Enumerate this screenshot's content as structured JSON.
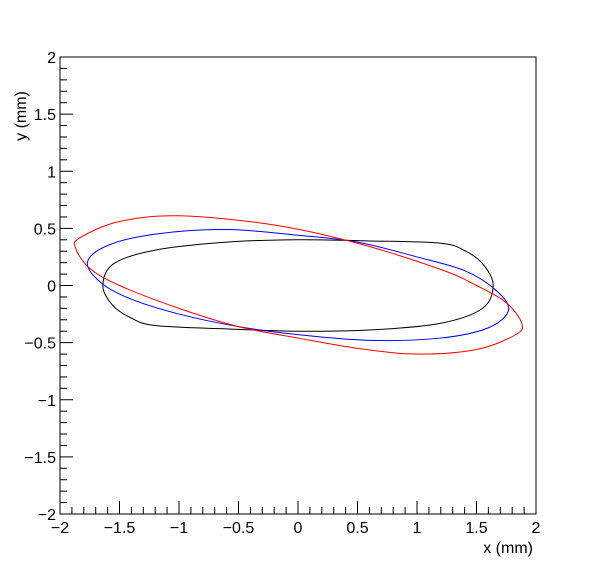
{
  "chart_data": {
    "type": "line",
    "title": "",
    "xlabel": "x (mm)",
    "ylabel": "y (mm)",
    "xlim": [
      -2,
      2
    ],
    "ylim": [
      -2,
      2
    ],
    "xticks": [
      -2,
      -1.5,
      -1,
      -0.5,
      0,
      0.5,
      1,
      1.5,
      2
    ],
    "yticks": [
      -2,
      -1.5,
      -1,
      -0.5,
      0,
      0.5,
      1,
      1.5,
      2
    ],
    "xtick_labels": [
      "−2",
      "−1.5",
      "−1",
      "−0.5",
      "0",
      "0.5",
      "1",
      "1.5",
      "2"
    ],
    "ytick_labels": [
      "−2",
      "−1.5",
      "−1",
      "−0.5",
      "0",
      "0.5",
      "1",
      "1.5",
      "2"
    ],
    "grid": false,
    "legend": "none",
    "series": [
      {
        "color": "#000000",
        "points": [
          [
            1.64,
            0.0
          ],
          [
            1.56,
            0.18
          ],
          [
            1.41,
            0.3
          ],
          [
            1.2,
            0.37
          ],
          [
            0.6,
            0.39
          ],
          [
            0.0,
            0.4
          ],
          [
            -0.6,
            0.38
          ],
          [
            -1.2,
            0.31
          ],
          [
            -1.55,
            0.19
          ],
          [
            -1.64,
            0.0
          ],
          [
            -1.56,
            -0.17
          ],
          [
            -1.41,
            -0.28
          ],
          [
            -1.2,
            -0.35
          ],
          [
            -0.6,
            -0.38
          ],
          [
            0.0,
            -0.4
          ],
          [
            0.6,
            -0.39
          ],
          [
            1.2,
            -0.33
          ],
          [
            1.55,
            -0.2
          ],
          [
            1.64,
            0.0
          ]
        ]
      },
      {
        "color": "#0000ff",
        "points": [
          [
            1.77,
            -0.21
          ],
          [
            1.65,
            -0.03
          ],
          [
            1.4,
            0.13
          ],
          [
            1.0,
            0.25
          ],
          [
            0.5,
            0.38
          ],
          [
            0.0,
            0.44
          ],
          [
            -0.6,
            0.49
          ],
          [
            -1.2,
            0.45
          ],
          [
            -1.6,
            0.35
          ],
          [
            -1.77,
            0.2
          ],
          [
            -1.65,
            0.02
          ],
          [
            -1.4,
            -0.12
          ],
          [
            -1.0,
            -0.25
          ],
          [
            -0.5,
            -0.36
          ],
          [
            0.0,
            -0.43
          ],
          [
            0.6,
            -0.48
          ],
          [
            1.2,
            -0.46
          ],
          [
            1.6,
            -0.37
          ],
          [
            1.77,
            -0.21
          ]
        ]
      },
      {
        "color": "#ff0000",
        "points": [
          [
            1.88,
            -0.33
          ],
          [
            1.75,
            -0.15
          ],
          [
            1.5,
            0.0
          ],
          [
            1.2,
            0.14
          ],
          [
            0.5,
            0.37
          ],
          [
            -0.2,
            0.53
          ],
          [
            -1.0,
            0.61
          ],
          [
            -1.5,
            0.56
          ],
          [
            -1.83,
            0.42
          ],
          [
            -1.87,
            0.33
          ],
          [
            -1.75,
            0.15
          ],
          [
            -1.5,
            0.0
          ],
          [
            -1.0,
            -0.2
          ],
          [
            -0.5,
            -0.36
          ],
          [
            0.0,
            -0.46
          ],
          [
            0.5,
            -0.55
          ],
          [
            1.0,
            -0.6
          ],
          [
            1.5,
            -0.56
          ],
          [
            1.83,
            -0.43
          ],
          [
            1.88,
            -0.33
          ]
        ]
      }
    ]
  }
}
